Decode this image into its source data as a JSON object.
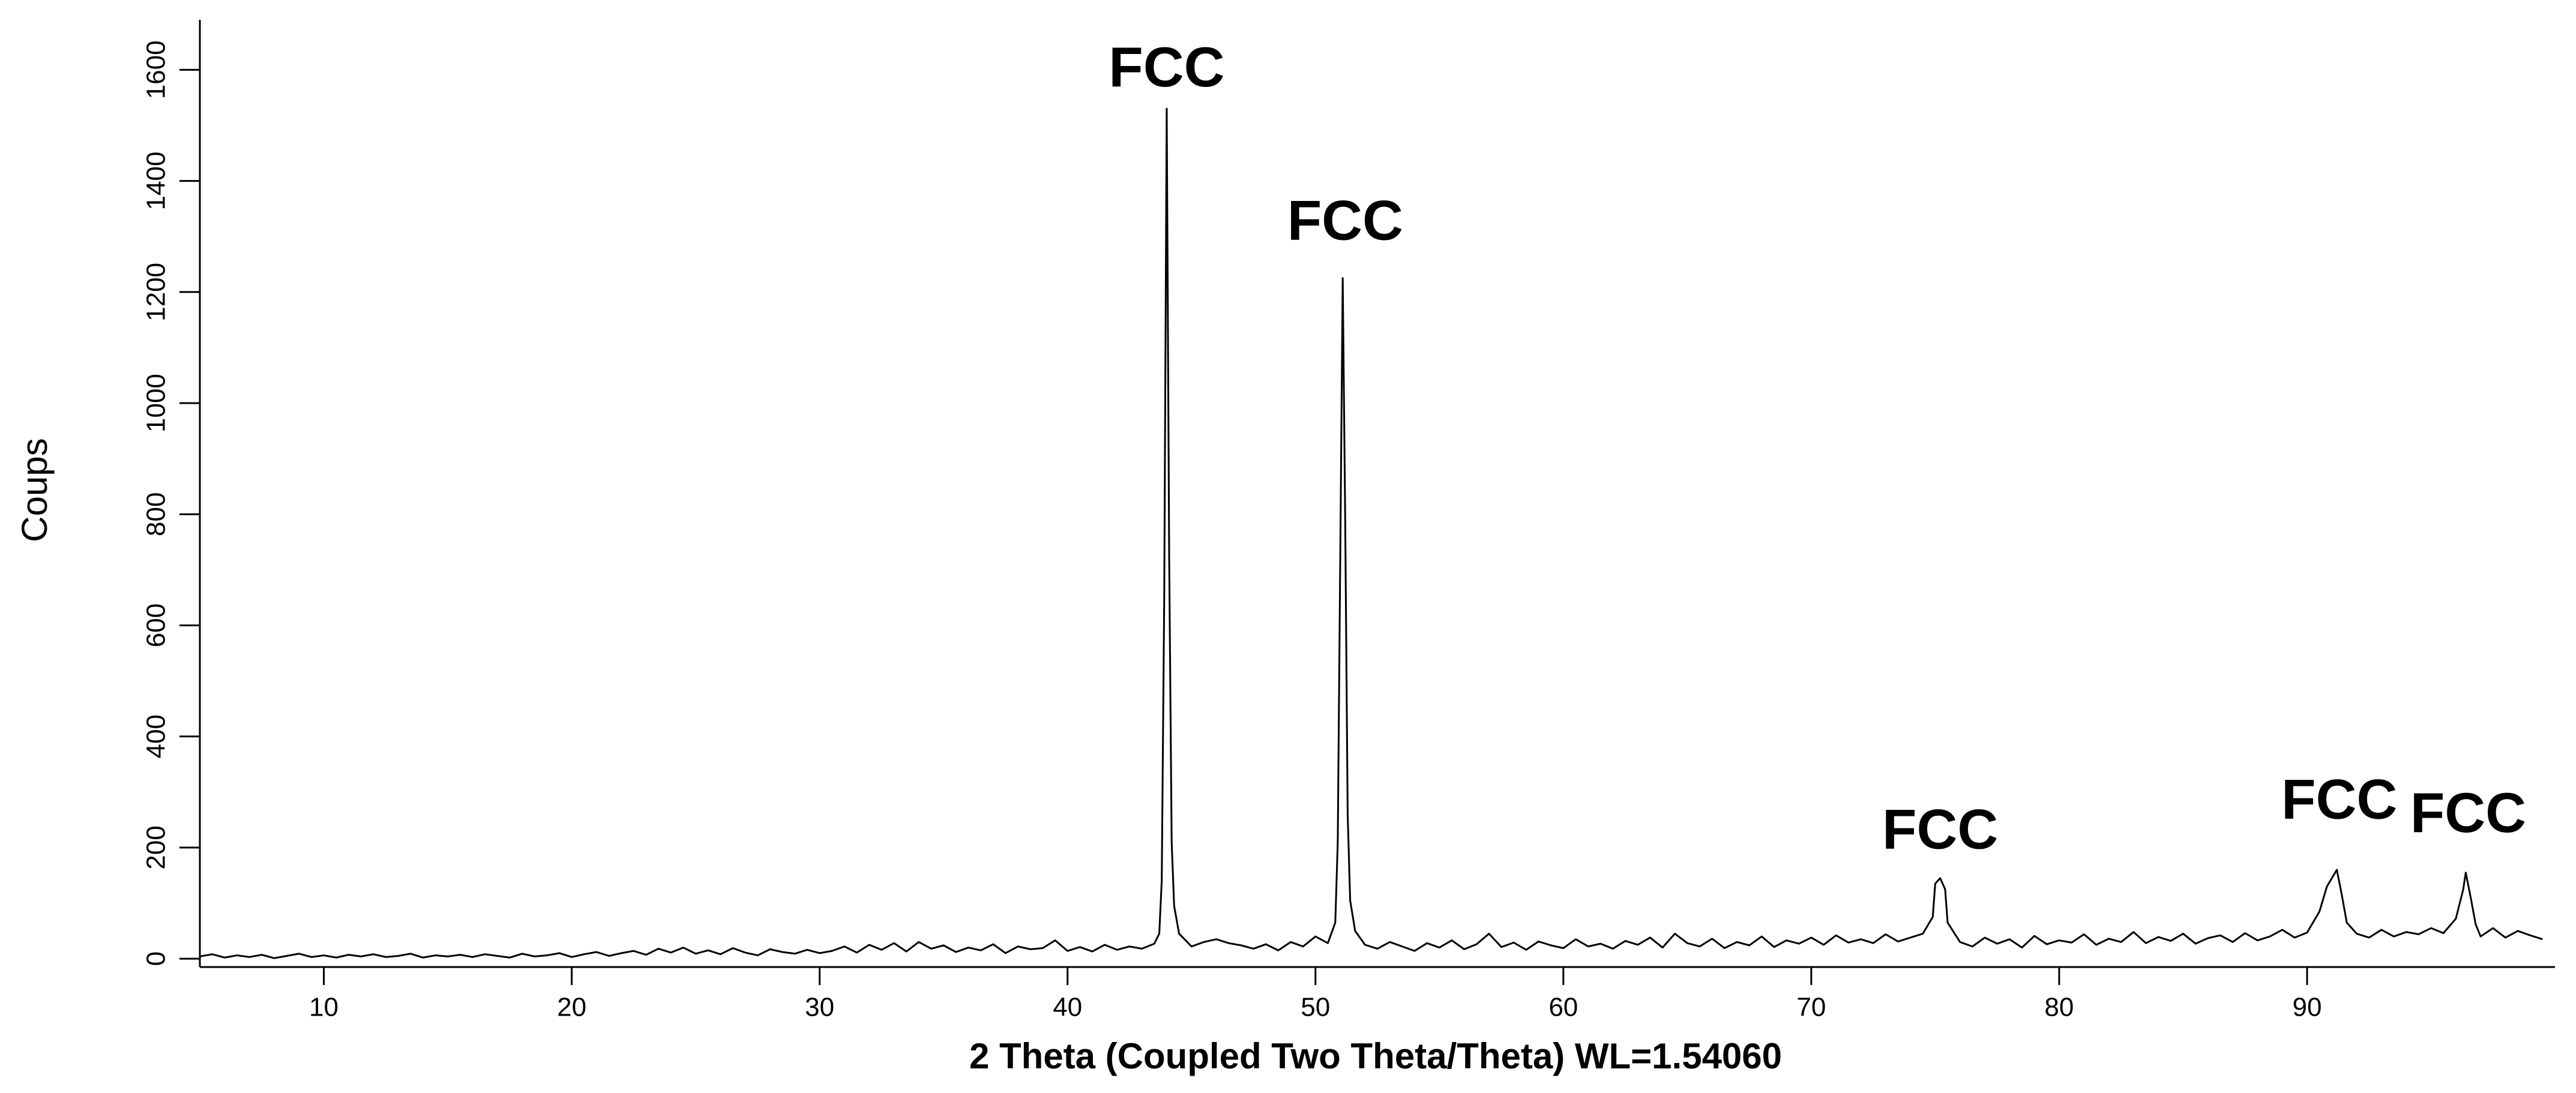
{
  "chart_data": {
    "type": "line",
    "x_label": "2 Theta (Coupled Two Theta/Theta) WL=1.54060",
    "y_label": "Coups",
    "xlim": [
      5,
      100
    ],
    "ylim": [
      -15,
      1690
    ],
    "xticks": [
      10,
      20,
      30,
      40,
      50,
      60,
      70,
      80,
      90
    ],
    "yticks": [
      0,
      200,
      400,
      600,
      800,
      1000,
      1200,
      1400,
      1600
    ],
    "grid": false,
    "series": [
      {
        "color": "#000000",
        "x": [
          5,
          5.5,
          6,
          6.5,
          7,
          7.5,
          8,
          8.5,
          9,
          9.5,
          10,
          10.5,
          11,
          11.5,
          12,
          12.5,
          13,
          13.5,
          14,
          14.5,
          15,
          15.5,
          16,
          16.5,
          17,
          17.5,
          18,
          18.5,
          19,
          19.5,
          20,
          20.5,
          21,
          21.5,
          22,
          22.5,
          23,
          23.5,
          24,
          24.5,
          25,
          25.5,
          26,
          26.5,
          27,
          27.5,
          28,
          28.5,
          29,
          29.5,
          30,
          30.5,
          31,
          31.5,
          32,
          32.5,
          33,
          33.5,
          34,
          34.5,
          35,
          35.5,
          36,
          36.5,
          37,
          37.5,
          38,
          38.5,
          39,
          39.5,
          40,
          40.5,
          41,
          41.5,
          42,
          42.5,
          43,
          43.5,
          43.7,
          43.8,
          43.9,
          44,
          44.1,
          44.2,
          44.3,
          44.5,
          45,
          45.5,
          46,
          46.5,
          47,
          47.5,
          48,
          48.5,
          49,
          49.5,
          50,
          50.5,
          50.8,
          50.9,
          51,
          51.1,
          51.2,
          51.3,
          51.4,
          51.6,
          52,
          52.5,
          53,
          53.5,
          54,
          54.5,
          55,
          55.5,
          56,
          56.5,
          57,
          57.5,
          58,
          58.5,
          59,
          59.5,
          60,
          60.5,
          61,
          61.5,
          62,
          62.5,
          63,
          63.5,
          64,
          64.5,
          65,
          65.5,
          66,
          66.5,
          67,
          67.5,
          68,
          68.5,
          69,
          69.5,
          70,
          70.5,
          71,
          71.5,
          72,
          72.5,
          73,
          73.5,
          74,
          74.5,
          74.9,
          75,
          75.2,
          75.4,
          75.5,
          76,
          76.5,
          77,
          77.5,
          78,
          78.5,
          79,
          79.5,
          80,
          80.5,
          81,
          81.5,
          82,
          82.5,
          83,
          83.5,
          84,
          84.5,
          85,
          85.5,
          86,
          86.5,
          87,
          87.5,
          88,
          88.5,
          89,
          89.5,
          90,
          90.5,
          90.8,
          91,
          91.2,
          91.4,
          91.6,
          92,
          92.5,
          93,
          93.5,
          94,
          94.5,
          95,
          95.5,
          96,
          96.3,
          96.4,
          96.6,
          96.8,
          97,
          97.5,
          98,
          98.5,
          99,
          99.5
        ],
        "values": [
          4,
          8,
          2,
          6,
          3,
          7,
          1,
          5,
          9,
          3,
          6,
          2,
          7,
          4,
          8,
          3,
          5,
          9,
          2,
          6,
          4,
          7,
          3,
          8,
          5,
          2,
          9,
          4,
          6,
          10,
          3,
          8,
          12,
          5,
          10,
          14,
          7,
          18,
          11,
          20,
          9,
          15,
          8,
          19,
          11,
          6,
          17,
          12,
          9,
          16,
          10,
          14,
          22,
          11,
          25,
          16,
          28,
          13,
          30,
          18,
          24,
          12,
          20,
          15,
          26,
          10,
          22,
          17,
          19,
          33,
          14,
          21,
          13,
          25,
          16,
          22,
          18,
          27,
          45,
          140,
          650,
          1530,
          720,
          210,
          95,
          45,
          22,
          30,
          35,
          28,
          24,
          18,
          26,
          15,
          30,
          22,
          40,
          28,
          65,
          210,
          720,
          1225,
          790,
          260,
          105,
          50,
          25,
          18,
          30,
          22,
          14,
          28,
          20,
          33,
          17,
          26,
          45,
          21,
          29,
          16,
          31,
          24,
          19,
          35,
          22,
          27,
          18,
          32,
          25,
          38,
          20,
          45,
          28,
          22,
          36,
          19,
          30,
          24,
          40,
          21,
          33,
          27,
          38,
          25,
          42,
          29,
          35,
          28,
          44,
          31,
          38,
          45,
          75,
          135,
          145,
          125,
          65,
          30,
          22,
          38,
          27,
          35,
          20,
          41,
          26,
          33,
          29,
          44,
          25,
          36,
          30,
          48,
          28,
          39,
          32,
          45,
          27,
          37,
          42,
          30,
          46,
          33,
          40,
          52,
          38,
          47,
          85,
          130,
          145,
          160,
          115,
          65,
          45,
          38,
          52,
          40,
          48,
          44,
          55,
          46,
          72,
          125,
          155,
          110,
          62,
          40,
          55,
          38,
          50,
          42,
          35
        ]
      }
    ],
    "annotations": [
      {
        "text": "FCC",
        "x": 44,
        "y": 1597
      },
      {
        "text": "FCC",
        "x": 51.2,
        "y": 1321
      },
      {
        "text": "FCC",
        "x": 75.2,
        "y": 225
      },
      {
        "text": "FCC",
        "x": 91.3,
        "y": 279
      },
      {
        "text": "FCC",
        "x": 96.5,
        "y": 255
      }
    ]
  }
}
